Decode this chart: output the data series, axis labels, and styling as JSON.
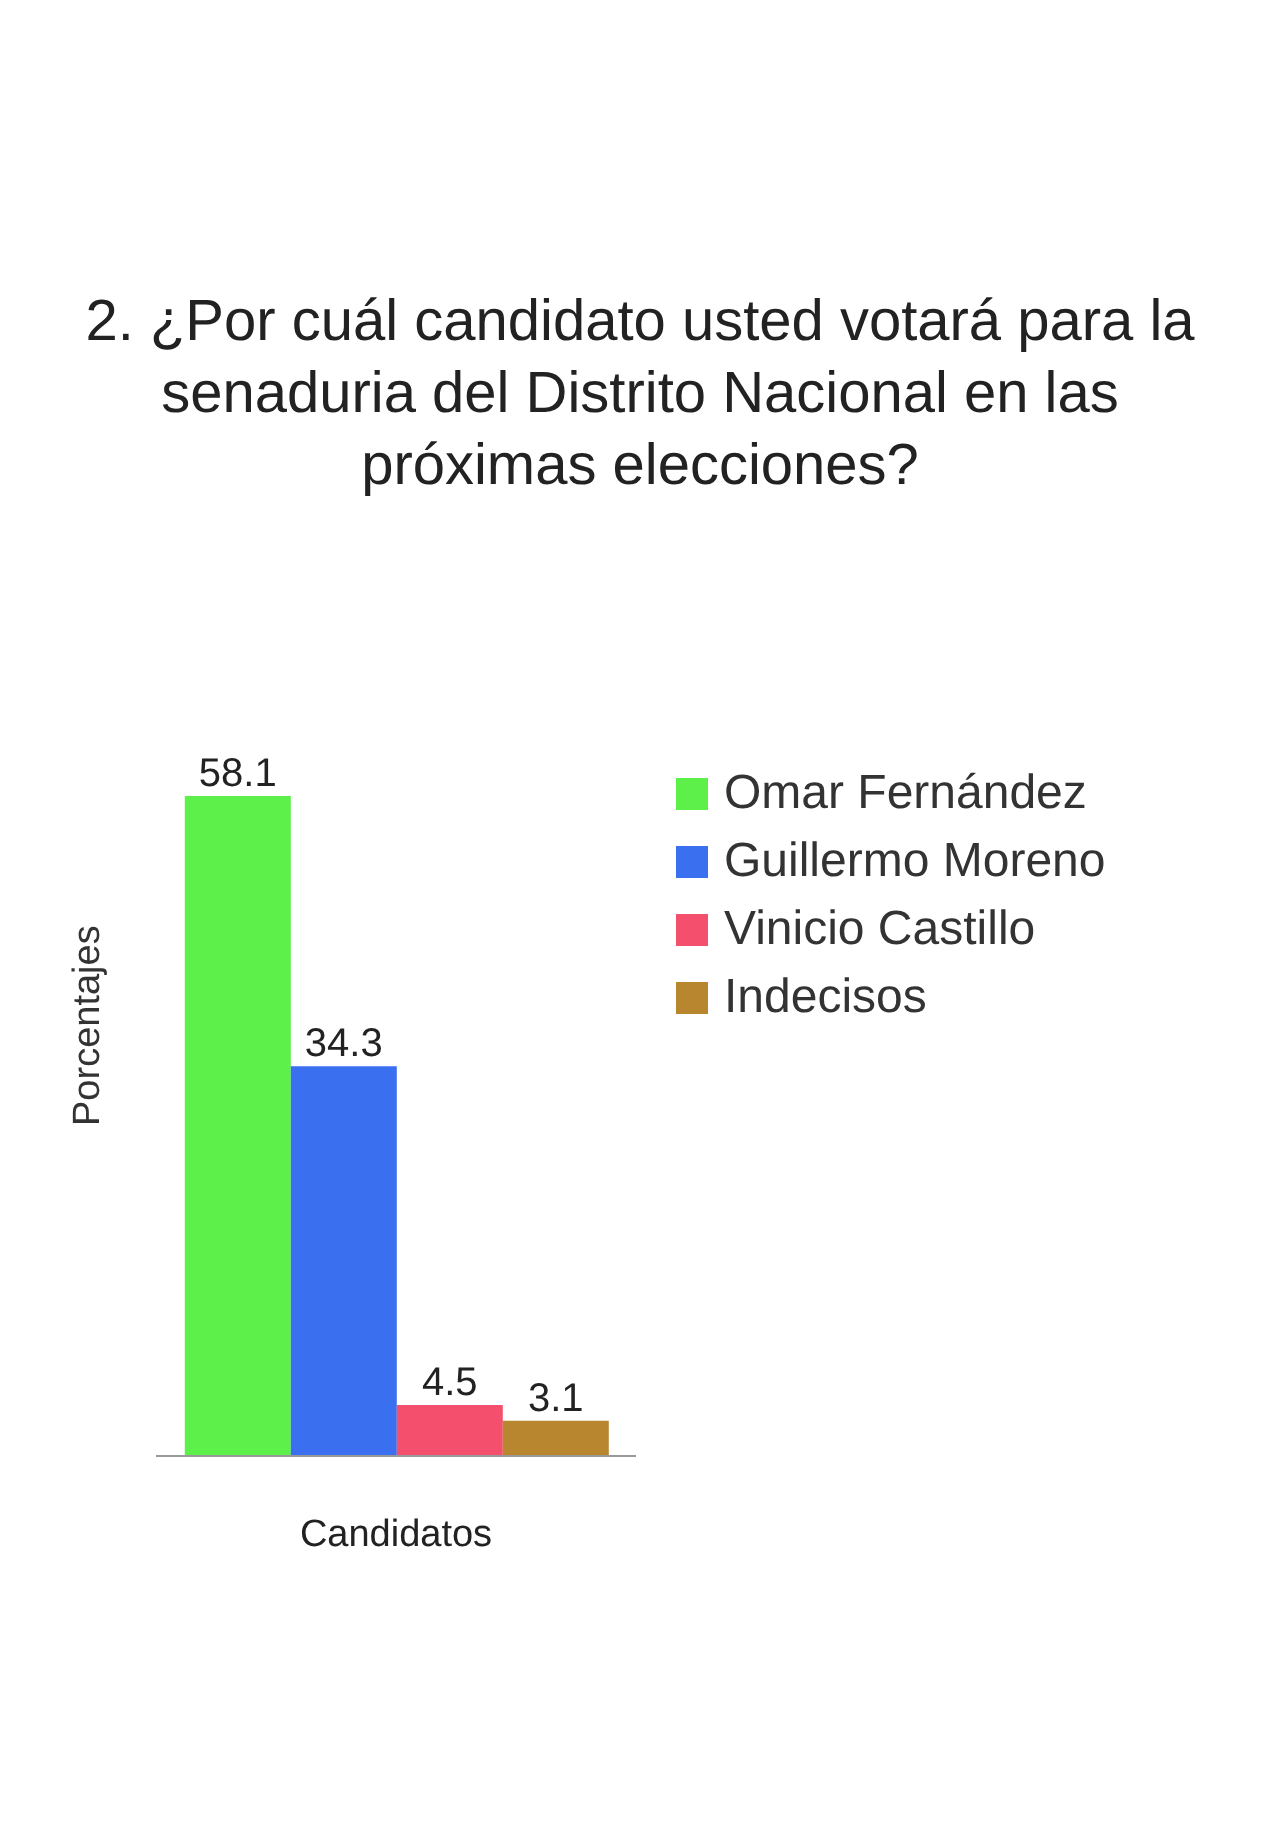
{
  "chart_data": {
    "type": "bar",
    "title": "2. ¿Por cuál candidato usted votará para la senaduria del Distrito Nacional en las próximas elecciones?",
    "xlabel": "Candidatos",
    "ylabel": "Porcentajes",
    "categories": [
      null
    ],
    "series": [
      {
        "name": "Omar Fernández",
        "color": "#5ef04a",
        "values": [
          58.1
        ]
      },
      {
        "name": "Guillermo Moreno",
        "color": "#3a6ff0",
        "values": [
          34.3
        ]
      },
      {
        "name": "Vinicio Castillo",
        "color": "#f4506e",
        "values": [
          4.5
        ]
      },
      {
        "name": "Indecisos",
        "color": "#b8862e",
        "values": [
          3.1
        ]
      }
    ],
    "data_labels": true,
    "legend": "top right",
    "grid": false
  }
}
